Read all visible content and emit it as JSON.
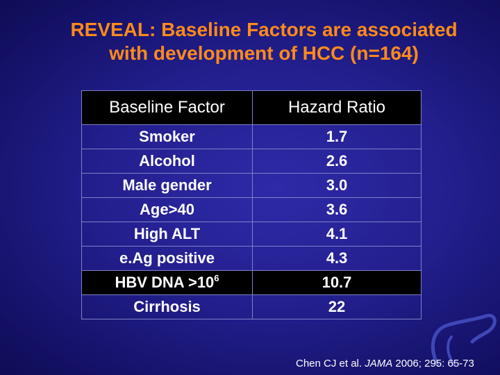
{
  "slide": {
    "title_line1": "REVEAL: Baseline Factors are associated",
    "title_line2": "with development of HCC (n=164)"
  },
  "table": {
    "headers": [
      "Baseline Factor",
      "Hazard Ratio"
    ],
    "rows": [
      {
        "factor": "Smoker",
        "hr": "1.7"
      },
      {
        "factor": "Alcohol",
        "hr": "2.6"
      },
      {
        "factor": "Male gender",
        "hr": "3.0"
      },
      {
        "factor": "Age>40",
        "hr": "3.6"
      },
      {
        "factor": "High ALT",
        "hr": "4.1"
      },
      {
        "factor": "e.Ag positive",
        "hr": "4.3"
      },
      {
        "factor_base": "HBV DNA >10",
        "factor_sup": "6",
        "hr": "10.7"
      },
      {
        "factor": "Cirrhosis",
        "hr": "22"
      }
    ]
  },
  "citation": {
    "authors": "Chen CJ  et al.",
    "journal": "JAMA",
    "details": "2006; 295: 65-73"
  },
  "logo": {
    "name": "liver-outline-icon",
    "color": "#3f47b8"
  }
}
